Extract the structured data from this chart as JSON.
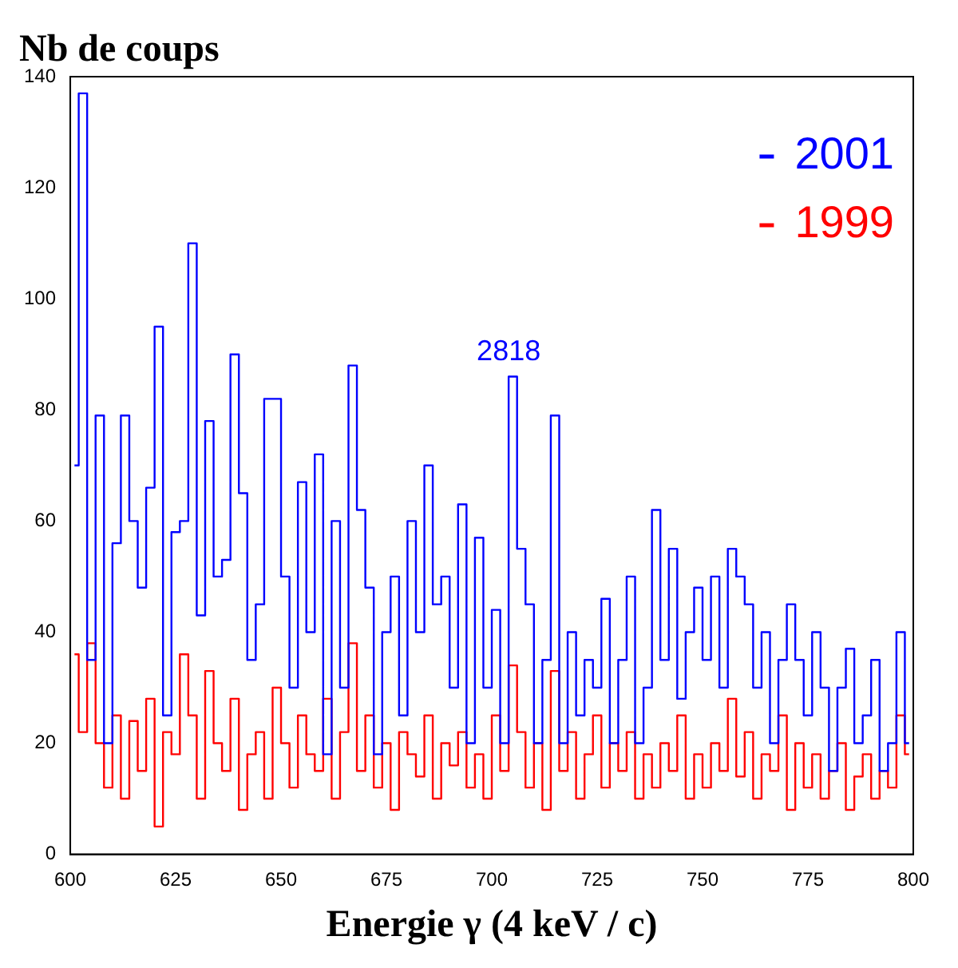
{
  "chart_data": {
    "type": "step",
    "xlabel": "Energie γ (4 keV / c)",
    "ylabel": "Nb de coups",
    "x": [
      601,
      603,
      605,
      607,
      609,
      611,
      613,
      615,
      617,
      619,
      621,
      623,
      625,
      627,
      629,
      631,
      633,
      635,
      637,
      639,
      641,
      643,
      645,
      647,
      649,
      651,
      653,
      655,
      657,
      659,
      661,
      663,
      665,
      667,
      669,
      671,
      673,
      675,
      677,
      679,
      681,
      683,
      685,
      687,
      689,
      691,
      693,
      695,
      697,
      699,
      701,
      703,
      705,
      707,
      709,
      711,
      713,
      715,
      717,
      719,
      721,
      723,
      725,
      727,
      729,
      731,
      733,
      735,
      737,
      739,
      741,
      743,
      745,
      747,
      749,
      751,
      753,
      755,
      757,
      759,
      761,
      763,
      765,
      767,
      769,
      771,
      773,
      775,
      777,
      779,
      781,
      783,
      785,
      787,
      789,
      791,
      793,
      795,
      797,
      799
    ],
    "series": [
      {
        "name": "2001",
        "color": "#0000ff",
        "values": [
          70,
          137,
          35,
          79,
          20,
          56,
          79,
          60,
          48,
          66,
          95,
          25,
          58,
          60,
          110,
          43,
          78,
          50,
          53,
          90,
          65,
          35,
          45,
          82,
          82,
          50,
          30,
          67,
          40,
          72,
          18,
          60,
          30,
          88,
          62,
          48,
          18,
          40,
          50,
          25,
          60,
          40,
          70,
          45,
          50,
          30,
          63,
          20,
          57,
          30,
          44,
          20,
          86,
          55,
          45,
          20,
          35,
          79,
          20,
          40,
          25,
          35,
          30,
          46,
          20,
          35,
          50,
          20,
          30,
          62,
          35,
          55,
          28,
          40,
          48,
          35,
          50,
          30,
          55,
          50,
          45,
          30,
          40,
          20,
          35,
          45,
          35,
          25,
          40,
          30,
          15,
          30,
          37,
          20,
          25,
          35,
          15,
          20,
          40,
          20
        ]
      },
      {
        "name": "1999",
        "color": "#ff0000",
        "values": [
          36,
          22,
          38,
          20,
          12,
          25,
          10,
          24,
          15,
          28,
          5,
          22,
          18,
          36,
          25,
          10,
          33,
          20,
          15,
          28,
          8,
          18,
          22,
          10,
          30,
          20,
          12,
          25,
          18,
          15,
          28,
          10,
          22,
          38,
          15,
          25,
          12,
          20,
          8,
          22,
          18,
          14,
          25,
          10,
          20,
          16,
          22,
          12,
          18,
          10,
          25,
          15,
          34,
          22,
          12,
          20,
          8,
          33,
          15,
          22,
          10,
          18,
          25,
          12,
          20,
          15,
          22,
          10,
          18,
          12,
          20,
          15,
          25,
          10,
          18,
          12,
          20,
          15,
          28,
          14,
          22,
          10,
          18,
          15,
          25,
          8,
          20,
          12,
          18,
          10,
          15,
          20,
          8,
          14,
          18,
          10,
          15,
          12,
          25,
          18
        ]
      }
    ],
    "annotations": [
      {
        "text": "2818",
        "x": 704,
        "y": 86
      }
    ],
    "xlim": [
      600,
      800
    ],
    "xticks": [
      600,
      625,
      650,
      675,
      700,
      725,
      750,
      775,
      800
    ],
    "ylim": [
      0,
      140
    ],
    "yticks": [
      0,
      20,
      40,
      60,
      80,
      100,
      120,
      140
    ],
    "legend": "top right"
  }
}
